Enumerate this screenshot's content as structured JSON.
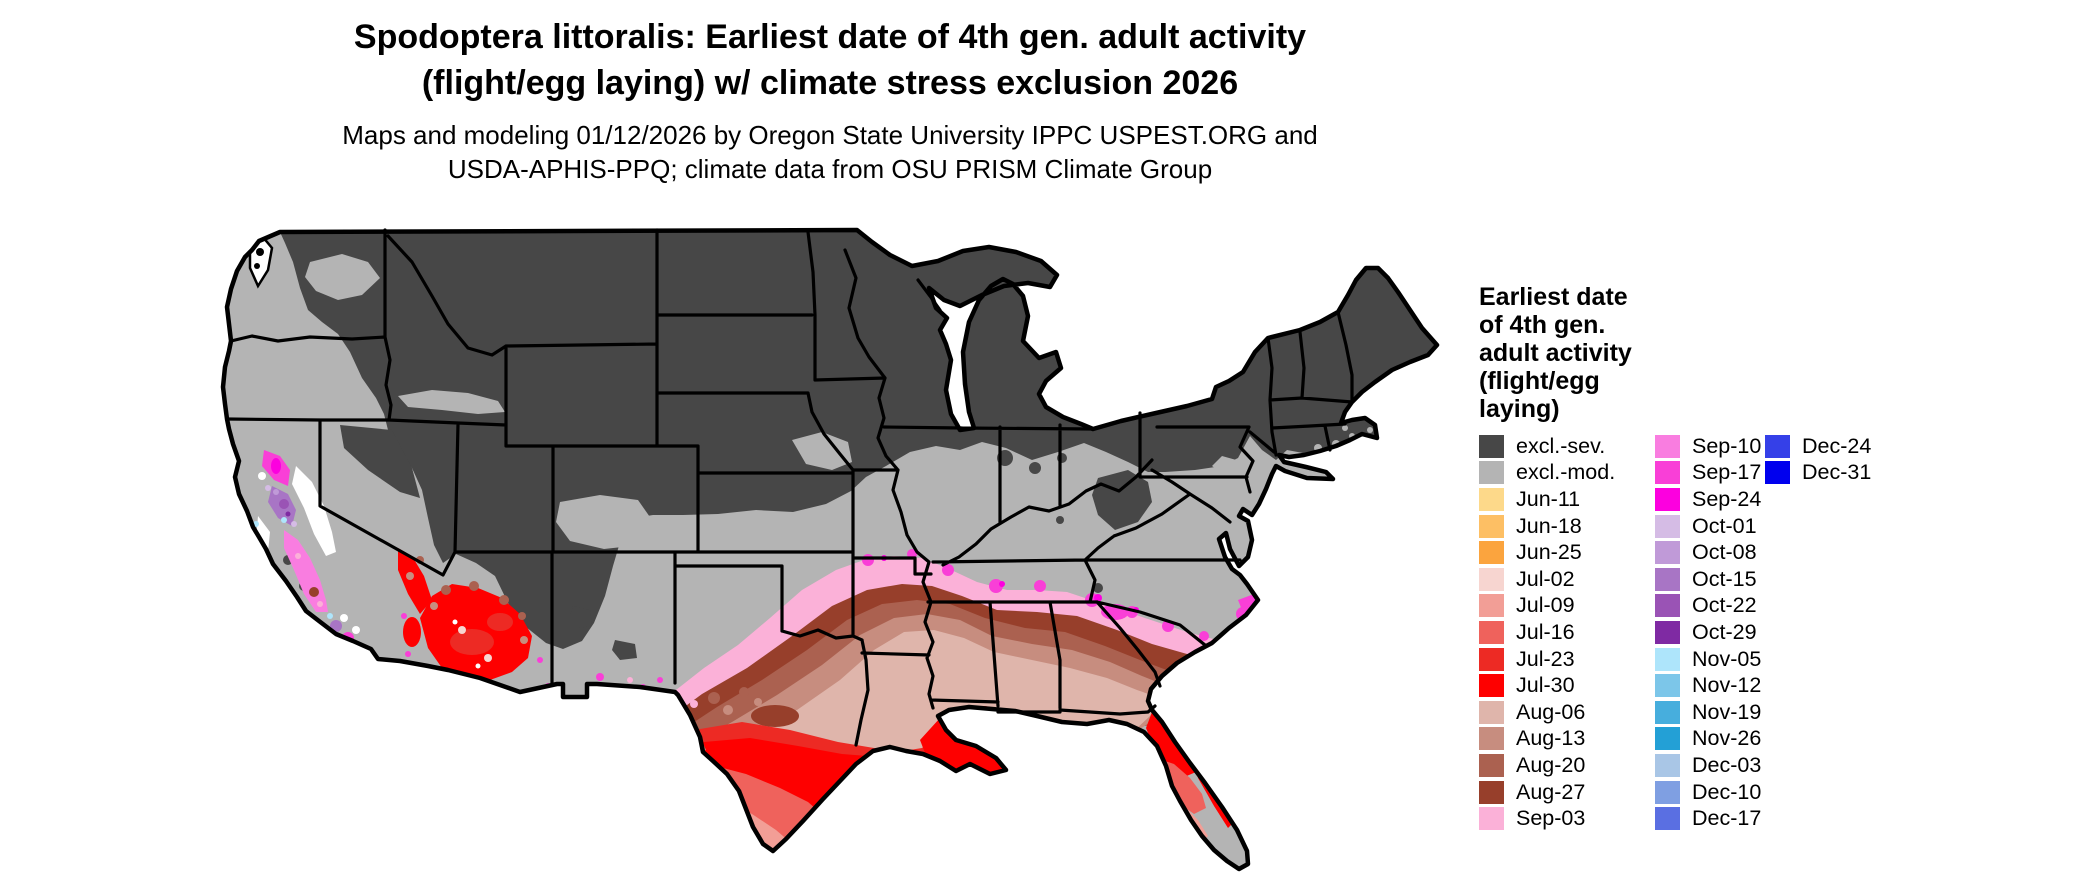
{
  "title": {
    "line1": "Spodoptera littoralis: Earliest date of 4th gen. adult activity",
    "line2": "(flight/egg laying) w/ climate stress exclusion 2026"
  },
  "subtitle": {
    "line1": "Maps and modeling 01/12/2026 by Oregon State University IPPC USPEST.ORG and",
    "line2": "USDA-APHIS-PPQ; climate data from OSU PRISM Climate Group"
  },
  "legend": {
    "title_lines": [
      "Earliest date",
      "of 4th gen.",
      "adult activity",
      "(flight/egg",
      "laying)"
    ],
    "columns": [
      {
        "items": [
          {
            "key": "excl_sev",
            "label": "excl.-sev.",
            "color": "#474747"
          },
          {
            "key": "excl_mod",
            "label": "excl.-mod.",
            "color": "#b4b4b4"
          },
          {
            "key": "jun11",
            "label": "Jun-11",
            "color": "#fdd98a"
          },
          {
            "key": "jun18",
            "label": "Jun-18",
            "color": "#fdbf64"
          },
          {
            "key": "jun25",
            "label": "Jun-25",
            "color": "#fba43e"
          },
          {
            "key": "jul02",
            "label": "Jul-02",
            "color": "#f7d5d0"
          },
          {
            "key": "jul09",
            "label": "Jul-09",
            "color": "#f29e96"
          },
          {
            "key": "jul16",
            "label": "Jul-16",
            "color": "#ef625c"
          },
          {
            "key": "jul23",
            "label": "Jul-23",
            "color": "#ed2a24"
          },
          {
            "key": "jul30",
            "label": "Jul-30",
            "color": "#fe0000"
          },
          {
            "key": "aug06",
            "label": "Aug-06",
            "color": "#dfb5ab"
          },
          {
            "key": "aug13",
            "label": "Aug-13",
            "color": "#c78d7f"
          },
          {
            "key": "aug20",
            "label": "Aug-20",
            "color": "#ab6150"
          },
          {
            "key": "aug27",
            "label": "Aug-27",
            "color": "#973f2b"
          },
          {
            "key": "sep03",
            "label": "Sep-03",
            "color": "#fbb1d8"
          }
        ]
      },
      {
        "items": [
          {
            "key": "sep10",
            "label": "Sep-10",
            "color": "#f97de0"
          },
          {
            "key": "sep17",
            "label": "Sep-17",
            "color": "#f93fd7"
          },
          {
            "key": "sep24",
            "label": "Sep-24",
            "color": "#fc00df"
          },
          {
            "key": "oct01",
            "label": "Oct-01",
            "color": "#d5bce5"
          },
          {
            "key": "oct08",
            "label": "Oct-08",
            "color": "#c09ad8"
          },
          {
            "key": "oct15",
            "label": "Oct-15",
            "color": "#a875c5"
          },
          {
            "key": "oct22",
            "label": "Oct-22",
            "color": "#9a53b5"
          },
          {
            "key": "oct29",
            "label": "Oct-29",
            "color": "#7f2aa3"
          },
          {
            "key": "nov05",
            "label": "Nov-05",
            "color": "#aee5fb"
          },
          {
            "key": "nov12",
            "label": "Nov-12",
            "color": "#7cc6e9"
          },
          {
            "key": "nov19",
            "label": "Nov-19",
            "color": "#47aedd"
          },
          {
            "key": "nov26",
            "label": "Nov-26",
            "color": "#23a0d6"
          },
          {
            "key": "dec03",
            "label": "Dec-03",
            "color": "#a9c6e6"
          },
          {
            "key": "dec10",
            "label": "Dec-10",
            "color": "#7f9fe2"
          },
          {
            "key": "dec17",
            "label": "Dec-17",
            "color": "#5a6fe2"
          }
        ]
      },
      {
        "items": [
          {
            "key": "dec24",
            "label": "Dec-24",
            "color": "#3540e8"
          },
          {
            "key": "dec31",
            "label": "Dec-31",
            "color": "#0000ee"
          }
        ]
      }
    ]
  }
}
